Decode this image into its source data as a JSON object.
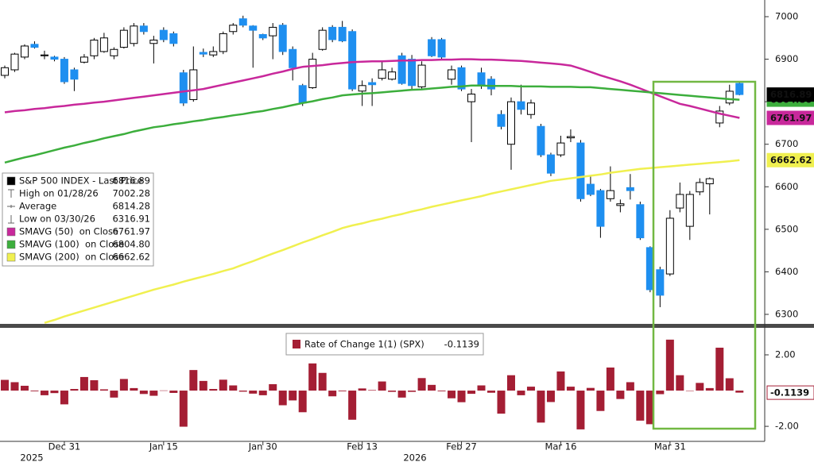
{
  "chart_data": [
    {
      "type": "candlestick",
      "name": "S&P 500 INDEX - Last Price",
      "categories": [
        null,
        null,
        null,
        null,
        null,
        null,
        "Dec 31",
        null,
        null,
        null,
        null,
        null,
        null,
        null,
        null,
        null,
        "Jan 15",
        null,
        null,
        null,
        null,
        null,
        null,
        null,
        null,
        null,
        "Jan 30",
        null,
        null,
        null,
        null,
        null,
        null,
        null,
        null,
        null,
        "Feb 13",
        null,
        null,
        null,
        null,
        null,
        null,
        null,
        null,
        null,
        "Feb 27",
        null,
        null,
        null,
        null,
        null,
        null,
        null,
        null,
        null,
        "Mar 16",
        null,
        null,
        null,
        null,
        null,
        null,
        null,
        null,
        null,
        null,
        "Mar 31",
        null,
        null,
        null,
        null,
        null,
        null,
        null
      ],
      "years": [
        "2025",
        "2026"
      ],
      "open": [
        6862,
        6875,
        6905,
        6935,
        6908,
        6905,
        6900,
        6875,
        6893,
        6908,
        6918,
        6908,
        6928,
        6937,
        6978,
        6937,
        6968,
        6960,
        6868,
        6805,
        6916,
        6910,
        6918,
        6965,
        6995,
        6978,
        6958,
        6955,
        6980,
        6923,
        6838,
        6833,
        6923,
        6975,
        6975,
        6965,
        6825,
        6845,
        6855,
        6853,
        6908,
        6900,
        6835,
        6946,
        6946,
        6853,
        6880,
        6800,
        6868,
        6853,
        6770,
        6700,
        6800,
        6770,
        6742,
        6675,
        6675,
        6715,
        6703,
        6606,
        6591,
        6572,
        6556,
        6598,
        6558,
        6457,
        6405,
        6395,
        6550,
        6507,
        6588,
        6607,
        6750,
        6797,
        6843
      ],
      "high": [
        6885,
        6915,
        6935,
        6942,
        6920,
        6908,
        6905,
        6880,
        6912,
        6950,
        6962,
        6928,
        6975,
        6985,
        6985,
        6955,
        6975,
        6965,
        6875,
        6930,
        6925,
        6930,
        6965,
        6985,
        7002.28,
        6980,
        6960,
        6985,
        6985,
        6930,
        6842,
        6915,
        6975,
        6980,
        6990,
        6970,
        6850,
        6855,
        6895,
        6880,
        6915,
        6910,
        6895,
        6952,
        6950,
        6885,
        6885,
        6830,
        6880,
        6860,
        6780,
        6810,
        6840,
        6805,
        6748,
        6680,
        6720,
        6735,
        6710,
        6625,
        6595,
        6648,
        6570,
        6630,
        6565,
        6460,
        6412,
        6545,
        6610,
        6590,
        6620,
        6622,
        6790,
        6840,
        6848
      ],
      "low": [
        6855,
        6870,
        6900,
        6925,
        6900,
        6895,
        6842,
        6825,
        6890,
        6900,
        6915,
        6900,
        6925,
        6930,
        6958,
        6890,
        6940,
        6930,
        6790,
        6800,
        6905,
        6905,
        6912,
        6958,
        6975,
        6880,
        6945,
        6900,
        6910,
        6850,
        6790,
        6830,
        6920,
        6940,
        6940,
        6825,
        6790,
        6790,
        6850,
        6850,
        6840,
        6830,
        6830,
        6905,
        6900,
        6840,
        6825,
        6705,
        6830,
        6815,
        6735,
        6640,
        6770,
        6760,
        6670,
        6625,
        6670,
        6705,
        6565,
        6578,
        6480,
        6565,
        6540,
        6570,
        6475,
        6352,
        6316.91,
        6390,
        6540,
        6475,
        6580,
        6535,
        6740,
        6792,
        6815
      ],
      "close": [
        6880,
        6912,
        6931,
        6928,
        6910,
        6900,
        6847,
        6853,
        6905,
        6945,
        6950,
        6923,
        6968,
        6978,
        6965,
        6945,
        6946,
        6937,
        6797,
        6875,
        6912,
        6918,
        6960,
        6980,
        6980,
        6968,
        6950,
        6975,
        6918,
        6880,
        6797,
        6900,
        6968,
        6946,
        6943,
        6830,
        6838,
        6840,
        6875,
        6870,
        6843,
        6838,
        6886,
        6908,
        6905,
        6875,
        6830,
        6818,
        6838,
        6830,
        6742,
        6800,
        6782,
        6797,
        6675,
        6632,
        6703,
        6718,
        6572,
        6582,
        6507,
        6591,
        6560,
        6591,
        6480,
        6358,
        6345,
        6526,
        6582,
        6582,
        6610,
        6619,
        6778,
        6824.66,
        6816.89
      ],
      "up_color": "#ffffff",
      "down_color": "#1e8ff0",
      "line_color": "#000000",
      "stats": [
        {
          "label": "High on 01/28/26"
        },
        {
          "label": "Average",
          "value": 6814.28
        },
        {
          "label": "Low on 03/30/26"
        }
      ],
      "series": [
        {
          "name": "SMAVG (50)  on Close",
          "color": "#c8289b",
          "values": [
            6775,
            6778,
            6780,
            6783,
            6785,
            6788,
            6790,
            6793,
            6795,
            6798,
            6800,
            6803,
            6806,
            6809,
            6812,
            6815,
            6818,
            6821,
            6824,
            6827,
            6830,
            6835,
            6840,
            6845,
            6850,
            6855,
            6860,
            6866,
            6871,
            6877,
            6882,
            6884,
            6886,
            6889,
            6891,
            6893,
            6894,
            6895,
            6895,
            6896,
            6897,
            6897,
            6898,
            6898,
            6899,
            6899,
            6900,
            6900,
            6899,
            6899,
            6898,
            6897,
            6896,
            6894,
            6892,
            6890,
            6888,
            6885,
            6878,
            6870,
            6862,
            6855,
            6848,
            6840,
            6831,
            6822,
            6813,
            6804,
            6795,
            6790,
            6784,
            6778,
            6772,
            6767,
            6761.97
          ]
        },
        {
          "name": "SMAVG (100)  on Close",
          "color": "#3cae3c",
          "last_label": "6804.80",
          "values": [
            6657,
            6663,
            6669,
            6674,
            6680,
            6686,
            6692,
            6697,
            6703,
            6708,
            6714,
            6719,
            6724,
            6730,
            6735,
            6740,
            6743,
            6747,
            6750,
            6754,
            6757,
            6761,
            6764,
            6768,
            6771,
            6775,
            6778,
            6783,
            6787,
            6792,
            6797,
            6801,
            6806,
            6810,
            6815,
            6817,
            6819,
            6820,
            6822,
            6824,
            6826,
            6828,
            6829,
            6831,
            6833,
            6835,
            6836,
            6838,
            6838,
            6837,
            6837,
            6837,
            6836,
            6836,
            6836,
            6835,
            6835,
            6835,
            6834,
            6834,
            6832,
            6830,
            6828,
            6826,
            6824,
            6822,
            6820,
            6818,
            6816,
            6814,
            6812,
            6810,
            6808,
            6806,
            6804.8
          ]
        },
        {
          "name": "SMAVG (200)  on Close",
          "color": "#f0f050",
          "values": [
            null,
            null,
            null,
            null,
            6280,
            6287,
            6295,
            6302,
            6309,
            6316,
            6323,
            6330,
            6337,
            6344,
            6351,
            6358,
            6364,
            6370,
            6377,
            6383,
            6389,
            6395,
            6402,
            6408,
            6417,
            6425,
            6434,
            6443,
            6451,
            6460,
            6469,
            6477,
            6486,
            6494,
            6503,
            6509,
            6514,
            6520,
            6525,
            6531,
            6536,
            6542,
            6547,
            6553,
            6558,
            6563,
            6568,
            6573,
            6578,
            6584,
            6589,
            6594,
            6599,
            6604,
            6609,
            6614,
            6617,
            6620,
            6623,
            6626,
            6629,
            6633,
            6636,
            6639,
            6642,
            6644,
            6646,
            6648,
            6650,
            6652,
            6654,
            6656,
            6658,
            6660,
            6662.62
          ]
        }
      ],
      "ylim": [
        6277.6,
        7039.2
      ],
      "yticks": [
        6300,
        6400,
        6500,
        6600,
        6700,
        6800,
        6900,
        7000
      ]
    },
    {
      "type": "bar",
      "name": "Rate of Change 1(1) (SPX)",
      "color": "#a41e34",
      "values": [
        0.6,
        0.47,
        0.27,
        -0.04,
        -0.26,
        -0.14,
        -0.77,
        0.09,
        0.76,
        0.58,
        0.07,
        -0.39,
        0.65,
        0.14,
        -0.19,
        -0.29,
        0.01,
        -0.13,
        -2.02,
        1.15,
        0.54,
        0.09,
        0.61,
        0.29,
        -0.06,
        -0.17,
        -0.26,
        0.36,
        -0.82,
        -0.55,
        -1.21,
        1.52,
        0.99,
        -0.32,
        -0.04,
        -1.63,
        0.12,
        0.03,
        0.51,
        -0.07,
        -0.39,
        -0.07,
        0.7,
        0.32,
        -0.04,
        -0.43,
        -0.65,
        -0.18,
        0.29,
        -0.12,
        -1.29,
        0.86,
        -0.26,
        0.22,
        -1.79,
        -0.64,
        1.07,
        0.22,
        -2.17,
        0.15,
        -1.14,
        1.29,
        -0.47,
        0.47,
        -1.68,
        -1.88,
        -0.2,
        2.85,
        0.86,
        0,
        0.43,
        0.14,
        2.4,
        0.69,
        -0.1139
      ],
      "ylim": [
        -2.84,
        3.51
      ],
      "yticks": [
        {
          "value": 2,
          "label": "2.00"
        },
        {
          "value": -2,
          "label": "-2.00"
        }
      ]
    }
  ]
}
